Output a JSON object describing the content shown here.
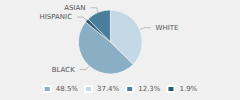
{
  "chart_data": {
    "type": "pie",
    "categories": [
      "WHITE",
      "BLACK",
      "HISPANIC",
      "ASIAN"
    ],
    "values": [
      37.4,
      48.5,
      1.9,
      12.3
    ],
    "value_labels": [
      "37.4%",
      "48.5%",
      "1.9%",
      "12.3%"
    ],
    "colors": [
      "#c5d8e5",
      "#8aafc4",
      "#2d5a73",
      "#4a7d9a"
    ],
    "legend": "bottom"
  }
}
